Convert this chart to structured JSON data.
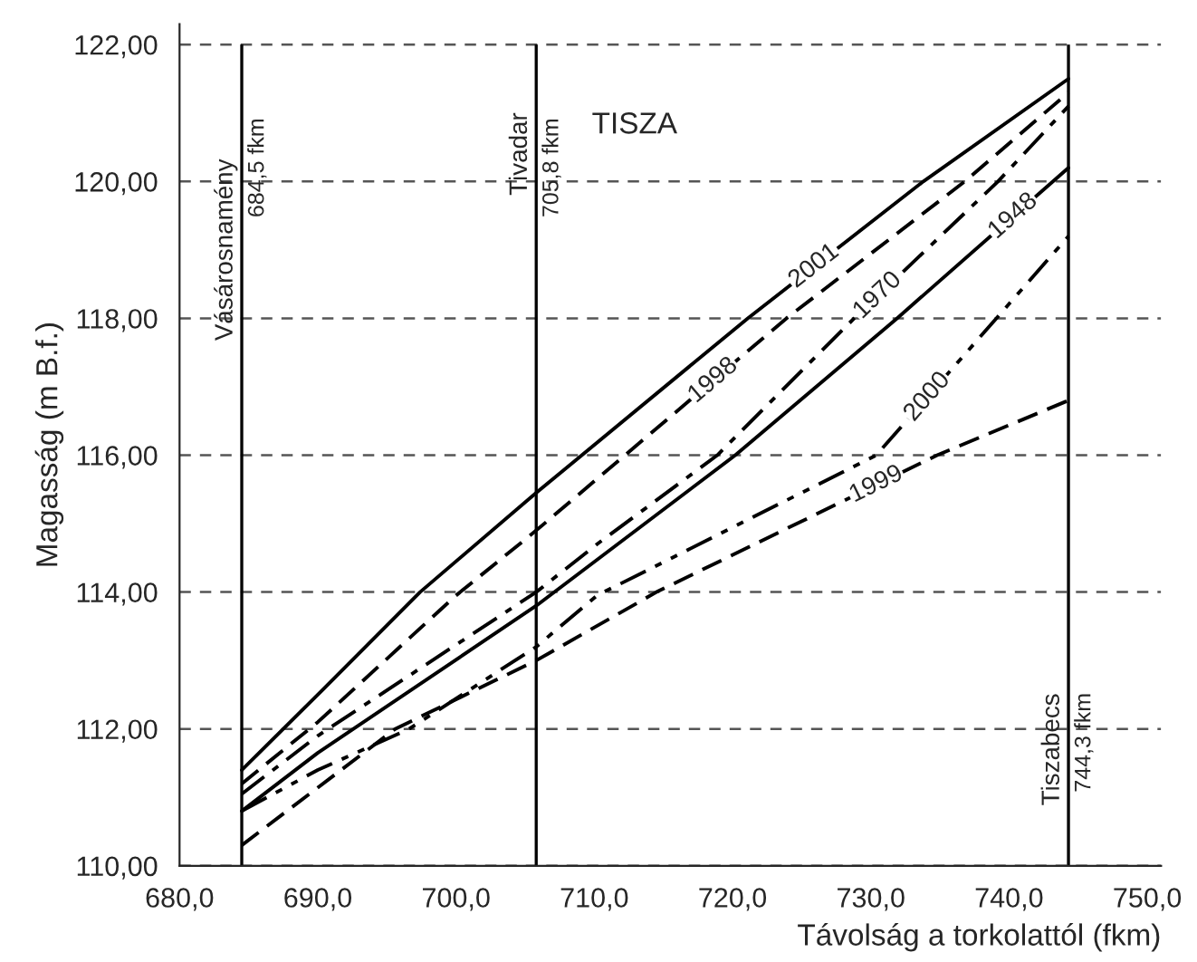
{
  "chart_data": {
    "type": "line",
    "xlabel": "Távolság a torkolattól (fkm)",
    "ylabel": "Magasság (m B.f.)",
    "xlim": [
      680,
      751
    ],
    "ylim": [
      110,
      122.3
    ],
    "xticks": [
      {
        "value": 680,
        "label": "680,0"
      },
      {
        "value": 690,
        "label": "690,0"
      },
      {
        "value": 700,
        "label": "700,0"
      },
      {
        "value": 710,
        "label": "710,0"
      },
      {
        "value": 720,
        "label": "720,0"
      },
      {
        "value": 730,
        "label": "730,0"
      },
      {
        "value": 740,
        "label": "740,0"
      },
      {
        "value": 750,
        "label": "750,0"
      }
    ],
    "yticks": [
      {
        "value": 110,
        "label": "110,00"
      },
      {
        "value": 112,
        "label": "112,00"
      },
      {
        "value": 114,
        "label": "114,00"
      },
      {
        "value": 116,
        "label": "116,00"
      },
      {
        "value": 118,
        "label": "118,00"
      },
      {
        "value": 120,
        "label": "120,00"
      },
      {
        "value": 122,
        "label": "122,00"
      }
    ],
    "grid": "y",
    "marker": "none",
    "series": [
      {
        "color": "#000000",
        "line_style": "solid",
        "x": [
          684.5,
          690,
          697.4,
          705.8,
          721.1,
          733.8,
          744.3
        ],
        "values": [
          111.4,
          112.5,
          114.0,
          115.45,
          118.0,
          120.0,
          121.5
        ]
      },
      {
        "color": "#000000",
        "line_style": "dashed",
        "x": [
          684.5,
          690,
          700,
          705.8,
          723.9,
          736.8,
          744.3
        ],
        "values": [
          111.2,
          112.1,
          113.95,
          114.9,
          118.0,
          120.0,
          121.3
        ]
      },
      {
        "color": "#000000",
        "line_style": "dashdot",
        "x": [
          684.5,
          690,
          705.8,
          710.2,
          718.9,
          728.8,
          739.2,
          744.3
        ],
        "values": [
          111.05,
          111.9,
          114.0,
          114.7,
          116.0,
          118.0,
          120.0,
          121.1
        ]
      },
      {
        "color": "#000000",
        "line_style": "solid",
        "x": [
          684.5,
          690,
          705.8,
          720.2,
          731.9,
          744.3
        ],
        "values": [
          110.8,
          111.65,
          113.8,
          116.0,
          118.0,
          120.2
        ]
      },
      {
        "color": "#000000",
        "line_style": "dashdotdot",
        "x": [
          684.5,
          690,
          696.6,
          705.8,
          710.2,
          730.4,
          744.3
        ],
        "values": [
          110.8,
          111.4,
          112.0,
          113.2,
          113.95,
          116.0,
          119.2
        ]
      },
      {
        "color": "#000000",
        "line_style": "dashed",
        "x": [
          684.5,
          695.6,
          705.8,
          714.5,
          734.8,
          744.3
        ],
        "values": [
          110.3,
          112.0,
          113.0,
          114.0,
          116.0,
          116.8
        ]
      }
    ],
    "ref_lines": [
      {
        "axis": "x",
        "value": 684.5,
        "color": "#000000"
      },
      {
        "axis": "x",
        "value": 705.8,
        "color": "#000000"
      },
      {
        "axis": "x",
        "value": 744.3,
        "color": "#000000"
      }
    ],
    "annotations": [
      "TISZA",
      {
        "text": "Vásárosnamény",
        "x": 684.5,
        "y": 119.0
      },
      {
        "text": "684,5 fkm",
        "x": 684.5,
        "y": 120.2
      },
      {
        "text": "Tivadar",
        "x": 705.8,
        "y": 120.4
      },
      {
        "text": "705,8 fkm",
        "x": 705.8,
        "y": 120.2
      },
      {
        "text": "Tiszabecs",
        "x": 744.3,
        "y": 111.7
      },
      {
        "text": "744,3 fkm",
        "x": 744.3,
        "y": 111.8
      },
      {
        "text": "2001",
        "x": 725.9,
        "y": 118.76
      },
      {
        "text": "1998",
        "x": 718.6,
        "y": 117.09
      },
      {
        "text": "1970",
        "x": 730.5,
        "y": 118.33
      },
      {
        "text": "1948",
        "x": 740.3,
        "y": 119.49
      },
      {
        "text": "2000",
        "x": 734.1,
        "y": 116.85
      },
      {
        "text": "1999",
        "x": 730.4,
        "y": 115.57
      }
    ]
  }
}
